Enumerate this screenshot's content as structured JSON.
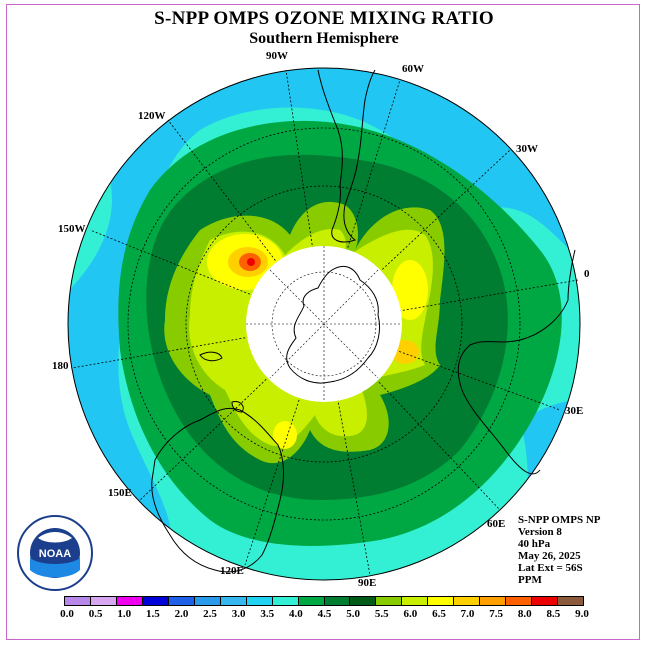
{
  "title": "S-NPP OMPS OZONE MIXING RATIO",
  "subtitle": "Southern Hemisphere",
  "longitude_labels": [
    "90W",
    "60W",
    "120W",
    "30W",
    "150W",
    "0",
    "180",
    "30E",
    "150E",
    "60E",
    "120E",
    "90E"
  ],
  "info": {
    "line1": "S-NPP OMPS NP",
    "line2": "Version 8",
    "line3": "40 hPa",
    "line4": "May 26, 2025",
    "line5": "Lat Ext = 56S",
    "line6": "PPM"
  },
  "colorbar": {
    "ticks": [
      "0.0",
      "0.5",
      "1.0",
      "1.5",
      "2.0",
      "2.5",
      "3.0",
      "3.5",
      "4.0",
      "4.5",
      "5.0",
      "5.5",
      "6.0",
      "6.5",
      "7.0",
      "7.5",
      "8.0",
      "8.5",
      "9.0"
    ],
    "colors": [
      "#b888e8",
      "#d6a6ee",
      "#ee00ee",
      "#0000d8",
      "#1e60e8",
      "#2a9aea",
      "#36b8ee",
      "#22d2f2",
      "#33f0d4",
      "#00a844",
      "#007d30",
      "#005a18",
      "#88cc00",
      "#c8ee00",
      "#ffff00",
      "#ffd000",
      "#ffa000",
      "#ff6000",
      "#ee0000",
      "#8b5a3c"
    ]
  },
  "logo": {
    "text": "NOAA",
    "ring_text_top": "NATIONAL OCEANIC AND ATMOSPHERIC ADMINISTRATION",
    "ring_text_bottom": "U.S. DEPARTMENT OF COMMERCE"
  }
}
